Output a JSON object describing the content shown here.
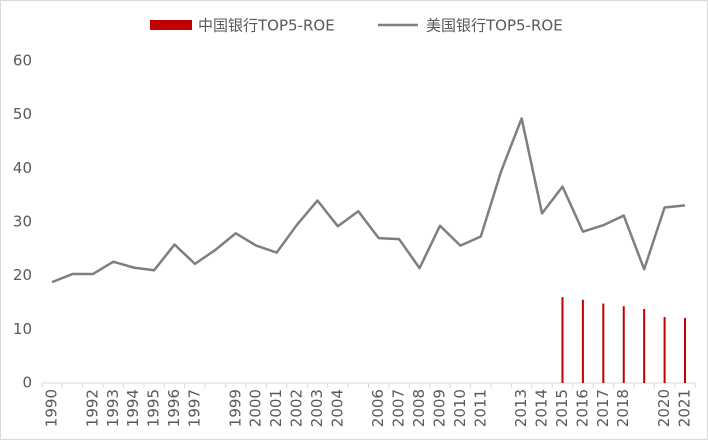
{
  "chart_data": {
    "type": "bar_line",
    "categories": [
      "1990",
      null,
      "1992",
      "1993",
      "1994",
      "1995",
      "1996",
      "1997",
      null,
      "1999",
      "2000",
      "2001",
      "2002",
      "2003",
      "2004",
      null,
      "2006",
      "2007",
      "2008",
      "2009",
      "2010",
      "2011",
      null,
      "2013",
      "2014",
      "2015",
      "2016",
      "2017",
      "2018",
      null,
      "2020",
      "2021"
    ],
    "series": [
      {
        "name": "中国银行TOP5-ROE",
        "type": "bar",
        "color": "#c00000",
        "values": [
          null,
          null,
          null,
          null,
          null,
          null,
          null,
          null,
          null,
          null,
          null,
          null,
          null,
          null,
          null,
          null,
          null,
          null,
          null,
          null,
          null,
          null,
          null,
          null,
          null,
          16.0,
          15.5,
          14.8,
          14.3,
          13.8,
          12.3,
          12.1
        ]
      },
      {
        "name": "美国银行TOP5-ROE",
        "type": "line",
        "color": "#7f7f7f",
        "values": [
          18.8,
          20.3,
          20.3,
          22.6,
          21.5,
          21.0,
          25.8,
          22.2,
          24.8,
          27.9,
          25.6,
          24.3,
          29.5,
          34.0,
          29.2,
          32.0,
          27.0,
          26.8,
          21.4,
          29.3,
          25.6,
          27.3,
          39.5,
          49.3,
          31.6,
          36.6,
          28.2,
          29.4,
          31.2,
          21.2,
          32.7,
          33.1
        ]
      }
    ],
    "ylim": [
      0,
      60
    ],
    "yticks": [
      0,
      10,
      20,
      30,
      40,
      50,
      60
    ],
    "legend": "top"
  }
}
